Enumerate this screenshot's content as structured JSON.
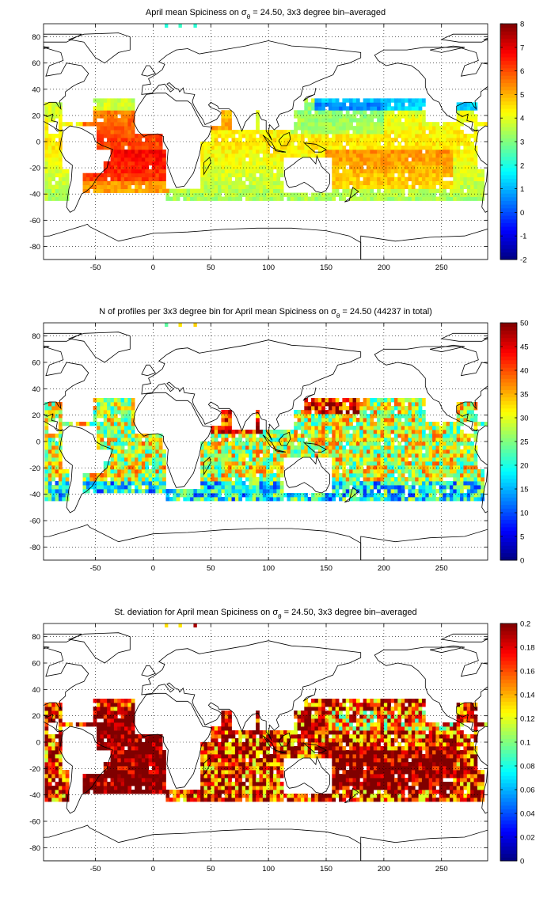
{
  "chart_data": [
    {
      "type": "heatmap",
      "title": {
        "pre": "April mean Spiciness on ",
        "sym": "σ",
        "sub": "θ",
        "post": " = 24.50, 3x3 degree bin–averaged"
      },
      "xlim": [
        -95,
        290
      ],
      "ylim": [
        -90,
        90
      ],
      "xticks": [
        -50,
        0,
        50,
        100,
        150,
        200,
        250
      ],
      "yticks": [
        80,
        60,
        40,
        20,
        0,
        -20,
        -40,
        -60,
        -80
      ],
      "grid": true,
      "colormap": "jet",
      "colorbar": {
        "min": -2,
        "max": 8,
        "ticks": [
          8,
          7,
          6,
          5,
          4,
          3,
          2,
          1,
          0,
          -1,
          -2
        ]
      },
      "field": "mean_spiciness"
    },
    {
      "type": "heatmap",
      "title": {
        "pre": "N of profiles per 3x3 degree bin for April mean Spiciness on ",
        "sym": "σ",
        "sub": "θ",
        "post": " = 24.50 (44237 in total)"
      },
      "xlim": [
        -95,
        290
      ],
      "ylim": [
        -90,
        90
      ],
      "xticks": [
        -50,
        0,
        50,
        100,
        150,
        200,
        250
      ],
      "yticks": [
        80,
        60,
        40,
        20,
        0,
        -20,
        -40,
        -60,
        -80
      ],
      "grid": true,
      "colormap": "jet",
      "colorbar": {
        "min": 0,
        "max": 50,
        "ticks": [
          50,
          45,
          40,
          35,
          30,
          25,
          20,
          15,
          10,
          5,
          0
        ]
      },
      "field": "profile_count",
      "total_profiles": 44237
    },
    {
      "type": "heatmap",
      "title": {
        "pre": "St. deviation for April mean Spiciness on ",
        "sym": "σ",
        "sub": "θ",
        "post": " = 24.50, 3x3 degree bin–averaged"
      },
      "xlim": [
        -95,
        290
      ],
      "ylim": [
        -90,
        90
      ],
      "xticks": [
        -50,
        0,
        50,
        100,
        150,
        200,
        250
      ],
      "yticks": [
        80,
        60,
        40,
        20,
        0,
        -20,
        -40,
        -60,
        -80
      ],
      "grid": true,
      "colormap": "jet",
      "colorbar": {
        "min": 0,
        "max": 0.2,
        "ticks": [
          0.2,
          0.18,
          0.16,
          0.14,
          0.12,
          0.1,
          0.08,
          0.06,
          0.04,
          0.02,
          0
        ]
      },
      "field": "std_spiciness"
    }
  ]
}
